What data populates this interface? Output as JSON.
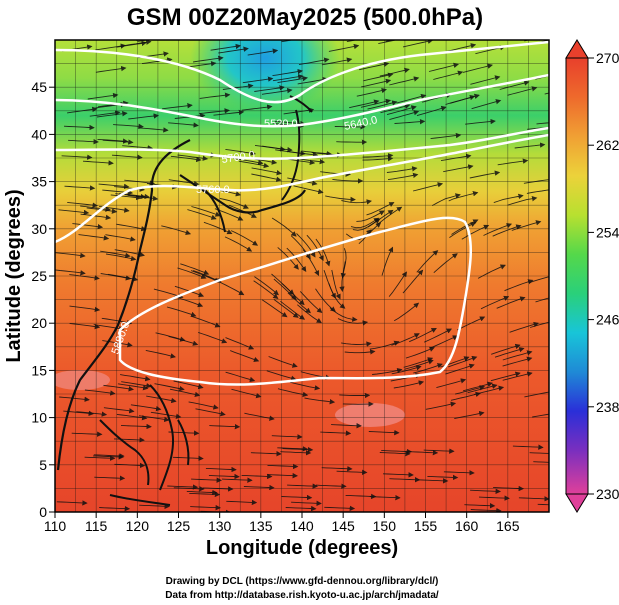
{
  "title": "GSM 00Z20May2025 (500.0hPa)",
  "xlabel": "Longitude (degrees)",
  "ylabel": "Latitude  (degrees)",
  "x_ticks": [
    "110",
    "115",
    "120",
    "125",
    "130",
    "135",
    "140",
    "145",
    "150",
    "155",
    "160",
    "165"
  ],
  "y_ticks": [
    "0",
    "5",
    "10",
    "15",
    "20",
    "25",
    "30",
    "35",
    "40",
    "45"
  ],
  "colorbar": {
    "ticks": [
      "270",
      "262",
      "254",
      "246",
      "238",
      "230"
    ],
    "colors": [
      "#e0409a",
      "#7a2fbf",
      "#2a2fd8",
      "#1f8ad6",
      "#18c5d8",
      "#2ad07a",
      "#55d84a",
      "#b8e030",
      "#ecd23a",
      "#f0a034",
      "#ee6a2c",
      "#e33a28"
    ]
  },
  "contour_labels": [
    "5520.0",
    "5640.0",
    "5700.0",
    "5760.0",
    "5880.0"
  ],
  "credits": {
    "line1": "Drawing by DCL (https://www.gfd-dennou.org/library/dcl/)",
    "line2": "Data from http://database.rish.kyoto-u.ac.jp/arch/jmadata/"
  }
}
